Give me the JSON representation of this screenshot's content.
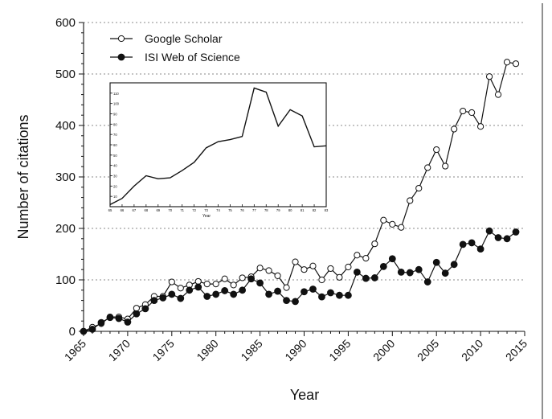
{
  "chart_data": [
    {
      "type": "line",
      "title": "",
      "xlabel": "Year",
      "ylabel": "Number of citations",
      "xlim": [
        1965,
        2015
      ],
      "ylim": [
        0,
        600
      ],
      "x_ticks": [
        "1965",
        "1970",
        "1975",
        "1980",
        "1985",
        "1990",
        "1995",
        "2000",
        "2005",
        "2010",
        "2015"
      ],
      "y_ticks": [
        "0",
        "100",
        "200",
        "300",
        "400",
        "500",
        "600"
      ],
      "grid": "horizontal dotted",
      "legend_position": "top-left",
      "series": [
        {
          "name": "Google Scholar",
          "marker": "open-circle",
          "color": "#111111",
          "x": [
            1965,
            1966,
            1967,
            1968,
            1969,
            1970,
            1971,
            1972,
            1973,
            1974,
            1975,
            1976,
            1977,
            1978,
            1979,
            1980,
            1981,
            1982,
            1983,
            1984,
            1985,
            1986,
            1987,
            1988,
            1989,
            1990,
            1991,
            1992,
            1993,
            1994,
            1995,
            1996,
            1997,
            1998,
            1999,
            2000,
            2001,
            2002,
            2003,
            2004,
            2005,
            2006,
            2007,
            2008,
            2009,
            2010,
            2011,
            2012,
            2013,
            2014
          ],
          "values": [
            0,
            8,
            15,
            28,
            28,
            24,
            45,
            52,
            68,
            68,
            96,
            84,
            90,
            97,
            92,
            92,
            102,
            90,
            104,
            106,
            123,
            118,
            108,
            85,
            135,
            120,
            127,
            100,
            122,
            105,
            125,
            148,
            142,
            170,
            216,
            208,
            202,
            254,
            278,
            318,
            353,
            321,
            393,
            428,
            425,
            398,
            495,
            460,
            523,
            520
          ]
        },
        {
          "name": "ISI Web of Science",
          "marker": "filled-circle",
          "color": "#111111",
          "x": [
            1965,
            1966,
            1967,
            1968,
            1969,
            1970,
            1971,
            1972,
            1973,
            1974,
            1975,
            1976,
            1977,
            1978,
            1979,
            1980,
            1981,
            1982,
            1983,
            1984,
            1985,
            1986,
            1987,
            1988,
            1989,
            1990,
            1991,
            1992,
            1993,
            1994,
            1995,
            1996,
            1997,
            1998,
            1999,
            2000,
            2001,
            2002,
            2003,
            2004,
            2005,
            2006,
            2007,
            2008,
            2009,
            2010,
            2011,
            2012,
            2013,
            2014
          ],
          "values": [
            0,
            4,
            17,
            27,
            25,
            18,
            34,
            44,
            60,
            65,
            72,
            64,
            80,
            86,
            68,
            72,
            79,
            72,
            80,
            102,
            94,
            72,
            78,
            60,
            58,
            77,
            82,
            67,
            75,
            70,
            70,
            115,
            103,
            104,
            126,
            141,
            115,
            114,
            120,
            96,
            134,
            113,
            130,
            169,
            172,
            160,
            195,
            182,
            180,
            193
          ]
        }
      ]
    },
    {
      "type": "line",
      "title": "",
      "xlabel": "Year",
      "ylabel": "",
      "xlim": [
        65,
        83
      ],
      "ylim": [
        0,
        120
      ],
      "x_ticks": [
        "65",
        "66",
        "67",
        "68",
        "69",
        "70",
        "71",
        "72",
        "73",
        "74",
        "75",
        "76",
        "77",
        "78",
        "79",
        "80",
        "81",
        "82",
        "83"
      ],
      "y_ticks": [
        "10",
        "20",
        "30",
        "40",
        "50",
        "60",
        "70",
        "80",
        "90",
        "100",
        "110"
      ],
      "series": [
        {
          "x": [
            65,
            66,
            67,
            68,
            69,
            70,
            71,
            72,
            73,
            74,
            75,
            76,
            77,
            78,
            79,
            80,
            81,
            82,
            83
          ],
          "values": [
            2,
            8,
            20,
            30,
            27,
            28,
            35,
            43,
            57,
            63,
            65,
            68,
            115,
            111,
            78,
            94,
            88,
            58,
            59
          ]
        }
      ]
    }
  ]
}
